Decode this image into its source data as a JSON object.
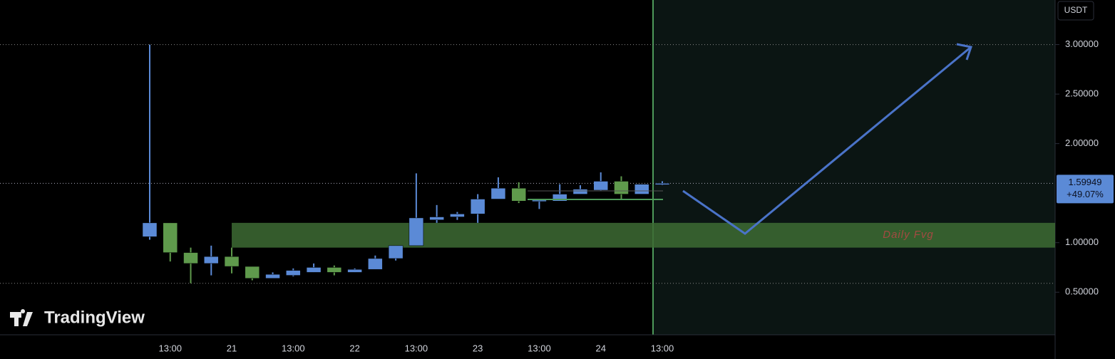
{
  "chart_data": {
    "type": "candlestick",
    "unit": "USDT",
    "watermark": "TradingView",
    "categories": [
      null,
      "13:00",
      null,
      null,
      "21",
      null,
      null,
      "13:00",
      null,
      null,
      "22",
      null,
      null,
      "13:00",
      null,
      null,
      "23",
      null,
      null,
      "13:00",
      null,
      null,
      "24",
      null,
      null,
      "13:00"
    ],
    "open": [
      1.06,
      1.2,
      0.9,
      0.79,
      0.86,
      0.76,
      0.64,
      0.67,
      0.7,
      0.75,
      0.7,
      0.73,
      0.84,
      0.97,
      1.23,
      1.26,
      1.29,
      1.44,
      1.55,
      1.42,
      1.42,
      1.49,
      1.53,
      1.62,
      1.49,
      1.585
    ],
    "high": [
      3.0,
      1.2,
      0.95,
      0.97,
      0.95,
      0.76,
      0.7,
      0.74,
      0.79,
      0.77,
      0.74,
      0.87,
      0.97,
      1.7,
      1.38,
      1.31,
      1.49,
      1.66,
      1.61,
      1.44,
      1.59,
      1.58,
      1.71,
      1.67,
      1.59,
      1.62
    ],
    "low": [
      1.03,
      0.81,
      0.59,
      0.67,
      0.69,
      0.62,
      0.64,
      0.66,
      0.7,
      0.67,
      0.7,
      0.73,
      0.82,
      0.97,
      1.2,
      1.23,
      1.2,
      1.44,
      1.4,
      1.34,
      1.42,
      1.49,
      1.52,
      1.44,
      1.49,
      1.58
    ],
    "close": [
      1.2,
      0.9,
      0.79,
      0.86,
      0.76,
      0.64,
      0.68,
      0.72,
      0.75,
      0.7,
      0.73,
      0.84,
      0.97,
      1.25,
      1.26,
      1.29,
      1.44,
      1.55,
      1.42,
      1.43,
      1.49,
      1.54,
      1.62,
      1.49,
      1.59,
      1.599
    ],
    "up_color": "#5b8ad6",
    "down_color": "#5f9a4c",
    "ylim": [
      0.07,
      3.45
    ],
    "yticks": [
      {
        "value": 0.5,
        "label": "0.50000"
      },
      {
        "value": 1.0,
        "label": "1.00000"
      },
      {
        "value": 2.0,
        "label": "2.00000"
      },
      {
        "value": 2.5,
        "label": "2.50000"
      },
      {
        "value": 3.0,
        "label": "3.00000"
      }
    ],
    "last_price": 1.59949,
    "change": {
      "value": 49.07,
      "label": "+49.07%"
    },
    "levels": [
      3.0,
      0.59
    ],
    "zones": [
      {
        "label": "Daily Fvg",
        "low": 0.95,
        "high": 1.2,
        "color": "#3d6b34"
      }
    ]
  }
}
